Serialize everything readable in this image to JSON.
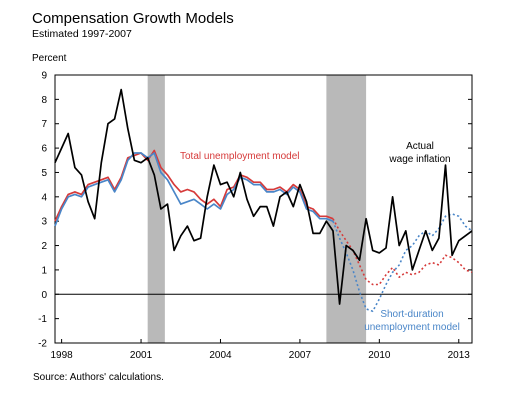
{
  "chart_data": {
    "type": "line",
    "title": "Compensation Growth Models",
    "subtitle": "Estimated 1997-2007",
    "ylabel": "Percent",
    "source": "Source: Authors' calculations.",
    "ylim": [
      -2,
      9
    ],
    "xlim": [
      1997.75,
      2013.5
    ],
    "y_ticks": [
      9,
      8,
      7,
      6,
      5,
      4,
      3,
      2,
      1,
      0,
      -1,
      -2
    ],
    "x_ticks": [
      {
        "label": "1998",
        "x": 1998
      },
      {
        "label": "2001",
        "x": 2001
      },
      {
        "label": "2004",
        "x": 2004
      },
      {
        "label": "2007",
        "x": 2007
      },
      {
        "label": "2010",
        "x": 2010
      },
      {
        "label": "2013",
        "x": 2013
      }
    ],
    "recessions": [
      {
        "start": 2001.25,
        "end": 2001.9
      },
      {
        "start": 2008.0,
        "end": 2009.5
      }
    ],
    "zero_line": true,
    "grid": false,
    "series": [
      {
        "name": "Actual wage inflation",
        "color": "#000000",
        "style": "solid",
        "points": [
          [
            1997.75,
            5.4
          ],
          [
            1998.0,
            6.0
          ],
          [
            1998.25,
            6.6
          ],
          [
            1998.5,
            5.2
          ],
          [
            1998.75,
            4.9
          ],
          [
            1999.0,
            3.8
          ],
          [
            1999.25,
            3.1
          ],
          [
            1999.5,
            5.4
          ],
          [
            1999.75,
            7.0
          ],
          [
            2000.0,
            7.2
          ],
          [
            2000.25,
            8.4
          ],
          [
            2000.5,
            6.8
          ],
          [
            2000.75,
            5.5
          ],
          [
            2001.0,
            5.4
          ],
          [
            2001.25,
            5.6
          ],
          [
            2001.5,
            4.9
          ],
          [
            2001.75,
            3.5
          ],
          [
            2002.0,
            3.7
          ],
          [
            2002.25,
            1.8
          ],
          [
            2002.5,
            2.4
          ],
          [
            2002.75,
            2.8
          ],
          [
            2003.0,
            2.2
          ],
          [
            2003.25,
            2.3
          ],
          [
            2003.5,
            4.0
          ],
          [
            2003.75,
            5.3
          ],
          [
            2004.0,
            4.5
          ],
          [
            2004.25,
            4.6
          ],
          [
            2004.5,
            4.0
          ],
          [
            2004.75,
            5.0
          ],
          [
            2005.0,
            3.9
          ],
          [
            2005.25,
            3.2
          ],
          [
            2005.5,
            3.6
          ],
          [
            2005.75,
            3.6
          ],
          [
            2006.0,
            2.8
          ],
          [
            2006.25,
            4.0
          ],
          [
            2006.5,
            4.2
          ],
          [
            2006.75,
            3.6
          ],
          [
            2007.0,
            4.5
          ],
          [
            2007.25,
            3.8
          ],
          [
            2007.5,
            2.5
          ],
          [
            2007.75,
            2.5
          ],
          [
            2008.0,
            3.0
          ],
          [
            2008.25,
            2.6
          ],
          [
            2008.5,
            -0.4
          ],
          [
            2008.75,
            2.0
          ],
          [
            2009.0,
            1.8
          ],
          [
            2009.25,
            1.4
          ],
          [
            2009.5,
            3.1
          ],
          [
            2009.75,
            1.8
          ],
          [
            2010.0,
            1.7
          ],
          [
            2010.25,
            1.9
          ],
          [
            2010.5,
            4.0
          ],
          [
            2010.75,
            2.0
          ],
          [
            2011.0,
            2.6
          ],
          [
            2011.25,
            1.0
          ],
          [
            2011.5,
            1.8
          ],
          [
            2011.75,
            2.6
          ],
          [
            2012.0,
            1.8
          ],
          [
            2012.25,
            2.3
          ],
          [
            2012.5,
            5.3
          ],
          [
            2012.75,
            1.6
          ],
          [
            2013.0,
            2.2
          ],
          [
            2013.25,
            2.4
          ],
          [
            2013.5,
            2.6
          ]
        ]
      },
      {
        "name": "Total unemployment model",
        "color": "#d63a3a",
        "style": "solid",
        "points": [
          [
            1997.75,
            3.0
          ],
          [
            1998.0,
            3.6
          ],
          [
            1998.25,
            4.1
          ],
          [
            1998.5,
            4.2
          ],
          [
            1998.75,
            4.1
          ],
          [
            1999.0,
            4.5
          ],
          [
            1999.25,
            4.6
          ],
          [
            1999.5,
            4.7
          ],
          [
            1999.75,
            4.8
          ],
          [
            2000.0,
            4.3
          ],
          [
            2000.25,
            4.8
          ],
          [
            2000.5,
            5.6
          ],
          [
            2000.75,
            5.7
          ],
          [
            2001.0,
            5.8
          ],
          [
            2001.25,
            5.5
          ],
          [
            2001.5,
            5.9
          ],
          [
            2001.75,
            5.2
          ],
          [
            2002.0,
            4.9
          ],
          [
            2002.25,
            4.5
          ],
          [
            2002.5,
            4.2
          ],
          [
            2002.75,
            4.3
          ],
          [
            2003.0,
            4.2
          ],
          [
            2003.25,
            3.9
          ],
          [
            2003.5,
            3.7
          ],
          [
            2003.75,
            3.9
          ],
          [
            2004.0,
            3.6
          ],
          [
            2004.25,
            4.3
          ],
          [
            2004.5,
            4.4
          ],
          [
            2004.75,
            4.9
          ],
          [
            2005.0,
            4.8
          ],
          [
            2005.25,
            4.6
          ],
          [
            2005.5,
            4.6
          ],
          [
            2005.75,
            4.3
          ],
          [
            2006.0,
            4.3
          ],
          [
            2006.25,
            4.4
          ],
          [
            2006.5,
            4.2
          ],
          [
            2006.75,
            4.5
          ],
          [
            2007.0,
            4.3
          ],
          [
            2007.25,
            3.6
          ],
          [
            2007.5,
            3.5
          ],
          [
            2007.75,
            3.2
          ],
          [
            2008.0,
            3.2
          ],
          [
            2008.25,
            3.1
          ]
        ]
      },
      {
        "name": "Short-duration unemployment model",
        "color": "#4a86c8",
        "style": "solid",
        "points": [
          [
            1997.75,
            2.8
          ],
          [
            1998.0,
            3.5
          ],
          [
            1998.25,
            4.0
          ],
          [
            1998.5,
            4.1
          ],
          [
            1998.75,
            4.0
          ],
          [
            1999.0,
            4.4
          ],
          [
            1999.25,
            4.5
          ],
          [
            1999.5,
            4.6
          ],
          [
            1999.75,
            4.7
          ],
          [
            2000.0,
            4.2
          ],
          [
            2000.25,
            4.7
          ],
          [
            2000.5,
            5.5
          ],
          [
            2000.75,
            5.8
          ],
          [
            2001.0,
            5.8
          ],
          [
            2001.25,
            5.6
          ],
          [
            2001.5,
            5.8
          ],
          [
            2001.75,
            5.0
          ],
          [
            2002.0,
            4.7
          ],
          [
            2002.25,
            4.2
          ],
          [
            2002.5,
            3.7
          ],
          [
            2002.75,
            3.8
          ],
          [
            2003.0,
            3.9
          ],
          [
            2003.25,
            3.7
          ],
          [
            2003.5,
            3.5
          ],
          [
            2003.75,
            3.7
          ],
          [
            2004.0,
            3.5
          ],
          [
            2004.25,
            4.1
          ],
          [
            2004.5,
            4.3
          ],
          [
            2004.75,
            4.8
          ],
          [
            2005.0,
            4.7
          ],
          [
            2005.25,
            4.5
          ],
          [
            2005.5,
            4.5
          ],
          [
            2005.75,
            4.2
          ],
          [
            2006.0,
            4.2
          ],
          [
            2006.25,
            4.3
          ],
          [
            2006.5,
            4.1
          ],
          [
            2006.75,
            4.4
          ],
          [
            2007.0,
            4.2
          ],
          [
            2007.25,
            3.5
          ],
          [
            2007.5,
            3.4
          ],
          [
            2007.75,
            3.1
          ],
          [
            2008.0,
            3.1
          ],
          [
            2008.25,
            3.0
          ]
        ]
      },
      {
        "name": "Total unemployment model",
        "color": "#d63a3a",
        "style": "dotted",
        "points": [
          [
            2008.25,
            3.1
          ],
          [
            2008.5,
            2.6
          ],
          [
            2008.75,
            2.2
          ],
          [
            2009.0,
            1.8
          ],
          [
            2009.25,
            1.2
          ],
          [
            2009.5,
            0.6
          ],
          [
            2009.75,
            0.4
          ],
          [
            2010.0,
            0.4
          ],
          [
            2010.25,
            0.8
          ],
          [
            2010.5,
            1.1
          ],
          [
            2010.75,
            0.7
          ],
          [
            2011.0,
            0.9
          ],
          [
            2011.25,
            0.8
          ],
          [
            2011.5,
            0.9
          ],
          [
            2011.75,
            1.2
          ],
          [
            2012.0,
            1.3
          ],
          [
            2012.25,
            1.2
          ],
          [
            2012.5,
            1.6
          ],
          [
            2012.75,
            1.5
          ],
          [
            2013.0,
            1.3
          ],
          [
            2013.25,
            1.0
          ],
          [
            2013.5,
            0.9
          ]
        ]
      },
      {
        "name": "Short-duration unemployment model",
        "color": "#4a86c8",
        "style": "dotted",
        "points": [
          [
            2008.25,
            3.0
          ],
          [
            2008.5,
            2.3
          ],
          [
            2008.75,
            1.7
          ],
          [
            2009.0,
            1.0
          ],
          [
            2009.25,
            0.1
          ],
          [
            2009.5,
            -0.6
          ],
          [
            2009.75,
            -0.7
          ],
          [
            2010.0,
            -0.2
          ],
          [
            2010.25,
            0.4
          ],
          [
            2010.5,
            0.9
          ],
          [
            2010.75,
            1.2
          ],
          [
            2011.0,
            1.8
          ],
          [
            2011.25,
            2.0
          ],
          [
            2011.5,
            2.4
          ],
          [
            2011.75,
            2.6
          ],
          [
            2012.0,
            2.4
          ],
          [
            2012.25,
            2.7
          ],
          [
            2012.5,
            3.2
          ],
          [
            2012.75,
            3.3
          ],
          [
            2013.0,
            3.2
          ],
          [
            2013.25,
            2.8
          ],
          [
            2013.5,
            2.6
          ]
        ]
      }
    ],
    "annotations": {
      "total": "Total unemployment model",
      "actual_line1": "Actual",
      "actual_line2": "wage inflation",
      "short_line1": "Short-duration",
      "short_line2": "unemployment model"
    }
  }
}
